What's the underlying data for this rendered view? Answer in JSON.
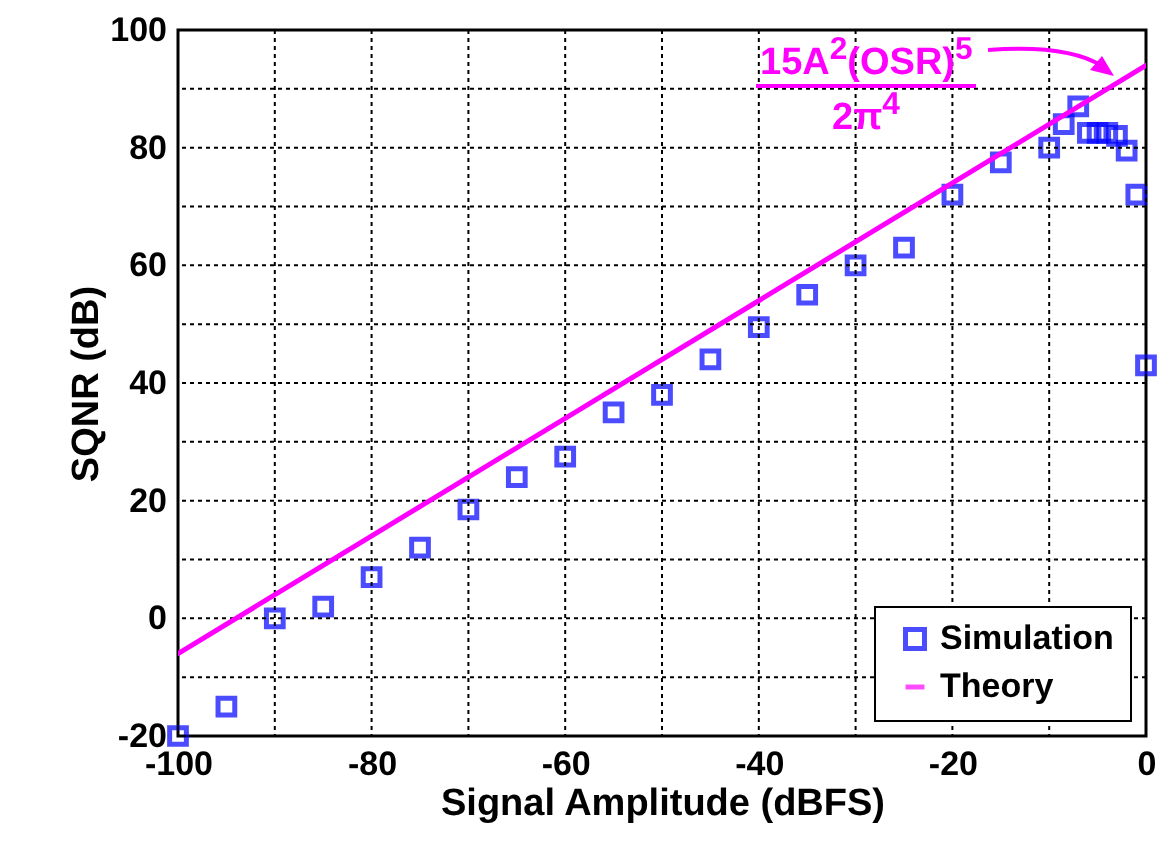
{
  "chart_data": {
    "type": "scatter",
    "xlabel": "Signal Amplitude (dBFS)",
    "ylabel": "SQNR (dB)",
    "annotations": [
      "15A$^{2}$(OSR)$^{5}$",
      "2π$^{4}$"
    ],
    "series": [
      {
        "name": "Simulation",
        "color": "#0000ff",
        "marker": "square",
        "x": [
          -100,
          -95,
          -90,
          -85,
          -80,
          -75,
          -70,
          -65,
          -60,
          -55,
          -50,
          -45,
          -40,
          -35,
          -30,
          -25,
          -20,
          -15,
          -10,
          -8.5,
          -7,
          -6,
          -5,
          -4,
          -3,
          -2,
          -1,
          0
        ],
        "values": [
          -20,
          -15,
          0,
          2,
          7,
          12,
          18.5,
          24,
          27.5,
          35,
          38,
          44,
          49.5,
          55,
          60,
          63,
          72,
          77.5,
          80,
          84,
          87,
          82.5,
          82.5,
          82.5,
          82,
          79.5,
          72,
          43
        ]
      },
      {
        "name": "Theory",
        "type": "line",
        "color": "#ff00ff",
        "marker": "none",
        "x": [
          -100,
          0
        ],
        "values": [
          -6,
          94
        ]
      }
    ],
    "xlim": [
      -100,
      0
    ],
    "ylim": [
      -20,
      100
    ],
    "xticks": [
      -100,
      {
        "value": -90,
        "label": null
      },
      -80,
      {
        "value": -70,
        "label": null
      },
      -60,
      {
        "value": -50,
        "label": null
      },
      -40,
      {
        "value": -30,
        "label": null
      },
      -20,
      {
        "value": -10,
        "label": null
      },
      0
    ],
    "yticks": [
      -20,
      {
        "value": -10,
        "label": null
      },
      0,
      {
        "value": 10,
        "label": null
      },
      20,
      {
        "value": 30,
        "label": null
      },
      40,
      {
        "value": 50,
        "label": null
      },
      60,
      {
        "value": 70,
        "label": null
      },
      80,
      {
        "value": 90,
        "label": null
      },
      100
    ],
    "grid": true,
    "legend": "bottom right",
    "line_style": "solid"
  }
}
